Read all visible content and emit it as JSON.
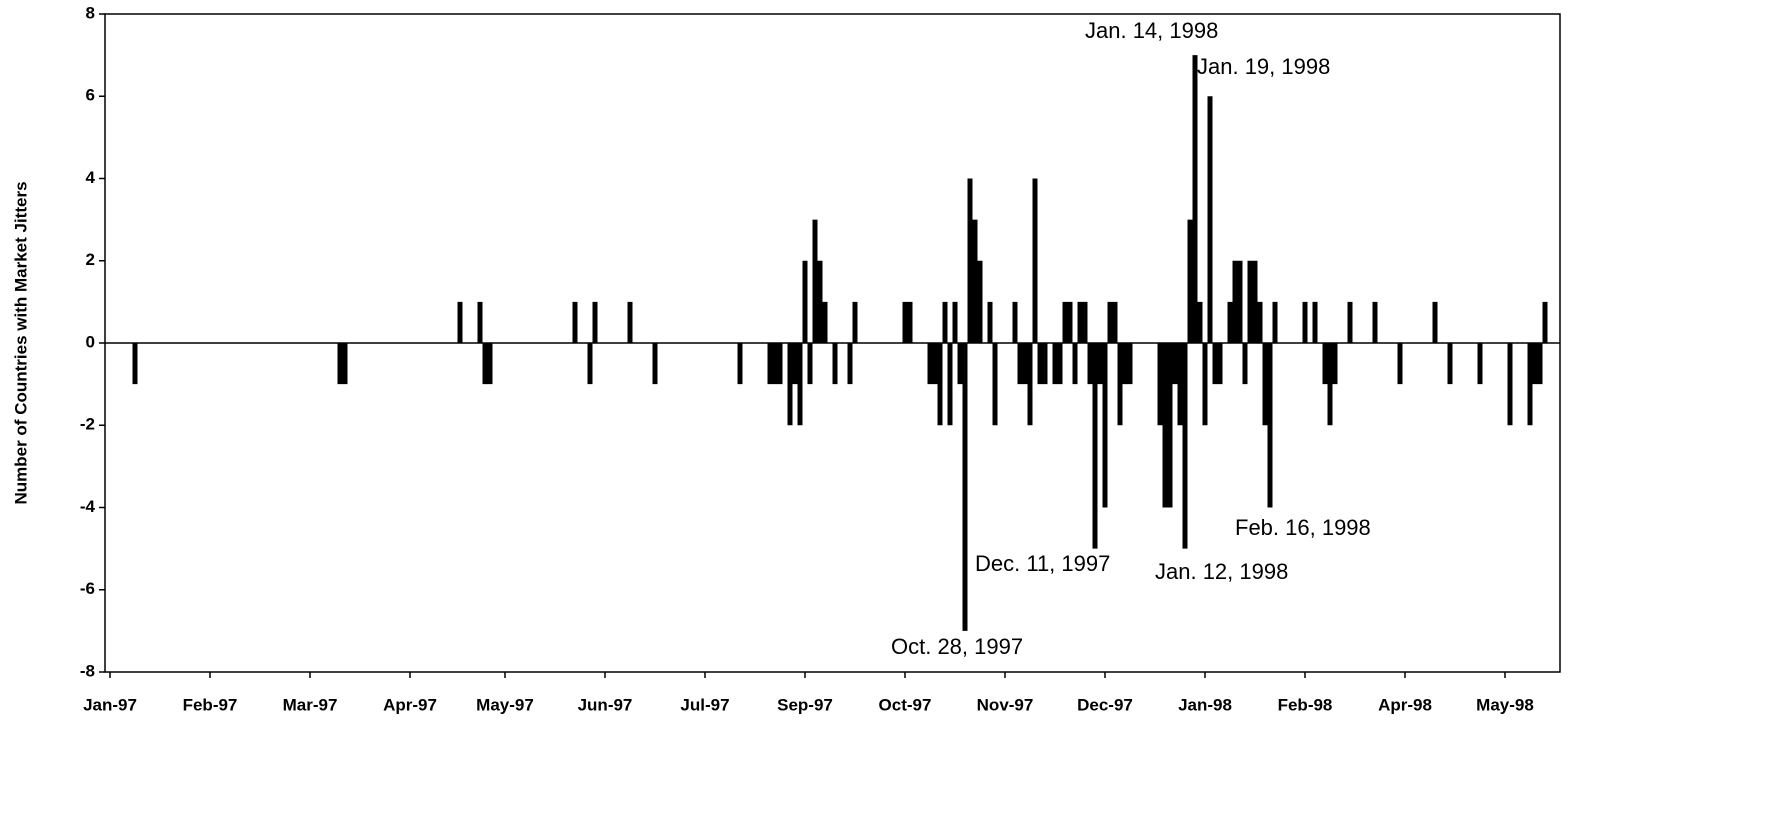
{
  "chart_data": {
    "type": "bar",
    "y_label": "Number of Countries with Market Jitters",
    "color": "#000000",
    "x": [
      6,
      47,
      48,
      71,
      75,
      76,
      77,
      94,
      97,
      98,
      105,
      110,
      127,
      133,
      134,
      135,
      137,
      138,
      139,
      140,
      141,
      142,
      143,
      144,
      146,
      149,
      150,
      160,
      161,
      165,
      166,
      167,
      168,
      169,
      170,
      171,
      172,
      173,
      174,
      175,
      177,
      178,
      182,
      183,
      184,
      185,
      186,
      187,
      188,
      190,
      191,
      192,
      193,
      194,
      195,
      196,
      197,
      198,
      199,
      200,
      201,
      202,
      203,
      204,
      205,
      211,
      212,
      213,
      214,
      215,
      216,
      217,
      218,
      219,
      220,
      221,
      222,
      223,
      225,
      226,
      227,
      228,
      229,
      230,
      231,
      232,
      233,
      234,
      240,
      242,
      244,
      245,
      246,
      249,
      254,
      259,
      266,
      269,
      275,
      281,
      285,
      286,
      287,
      288
    ],
    "values": [
      -1,
      -1,
      -1,
      1,
      1,
      -1,
      -1,
      1,
      -1,
      1,
      1,
      -1,
      -1,
      -1,
      -1,
      -1,
      -2,
      -1,
      -2,
      2,
      -1,
      3,
      2,
      1,
      -1,
      -1,
      1,
      1,
      1,
      -1,
      -1,
      -2,
      1,
      -2,
      1,
      -1,
      -7,
      4,
      3,
      2,
      1,
      -2,
      1,
      -1,
      -1,
      -2,
      4,
      -1,
      -1,
      -1,
      -1,
      1,
      1,
      -1,
      1,
      1,
      -1,
      -5,
      -1,
      -4,
      1,
      1,
      -2,
      -1,
      -1,
      -2,
      -4,
      -4,
      -1,
      -2,
      -5,
      3,
      7,
      1,
      -2,
      6,
      -1,
      -1,
      1,
      2,
      2,
      -1,
      2,
      2,
      1,
      -2,
      -4,
      1,
      1,
      1,
      -1,
      -2,
      -1,
      1,
      1,
      -1,
      1,
      -1,
      -1,
      -2,
      -2,
      -1,
      -1,
      1
    ],
    "xlim": [
      0,
      291
    ],
    "xticks": [
      {
        "value": 1,
        "label": "Jan-97"
      },
      {
        "value": 21,
        "label": "Feb-97"
      },
      {
        "value": 41,
        "label": "Mar-97"
      },
      {
        "value": 61,
        "label": "Apr-97"
      },
      {
        "value": 80,
        "label": "May-97"
      },
      {
        "value": 100,
        "label": "Jun-97"
      },
      {
        "value": 120,
        "label": "Jul-97"
      },
      {
        "value": 140,
        "label": "Sep-97"
      },
      {
        "value": 160,
        "label": "Oct-97"
      },
      {
        "value": 180,
        "label": "Nov-97"
      },
      {
        "value": 200,
        "label": "Dec-97"
      },
      {
        "value": 220,
        "label": "Jan-98"
      },
      {
        "value": 240,
        "label": "Feb-98"
      },
      {
        "value": 260,
        "label": "Apr-98"
      },
      {
        "value": 280,
        "label": "May-98"
      }
    ],
    "ylim": [
      -8,
      8
    ],
    "yticks": [
      -8,
      -6,
      -4,
      -2,
      0,
      2,
      4,
      6,
      8
    ],
    "grid": false,
    "annotations": [
      "Jan. 14, 1998",
      "Jan. 19, 1998",
      "Feb. 16, 1998",
      "Dec. 11, 1997",
      "Jan. 12, 1998",
      "Oct. 28, 1997"
    ]
  }
}
